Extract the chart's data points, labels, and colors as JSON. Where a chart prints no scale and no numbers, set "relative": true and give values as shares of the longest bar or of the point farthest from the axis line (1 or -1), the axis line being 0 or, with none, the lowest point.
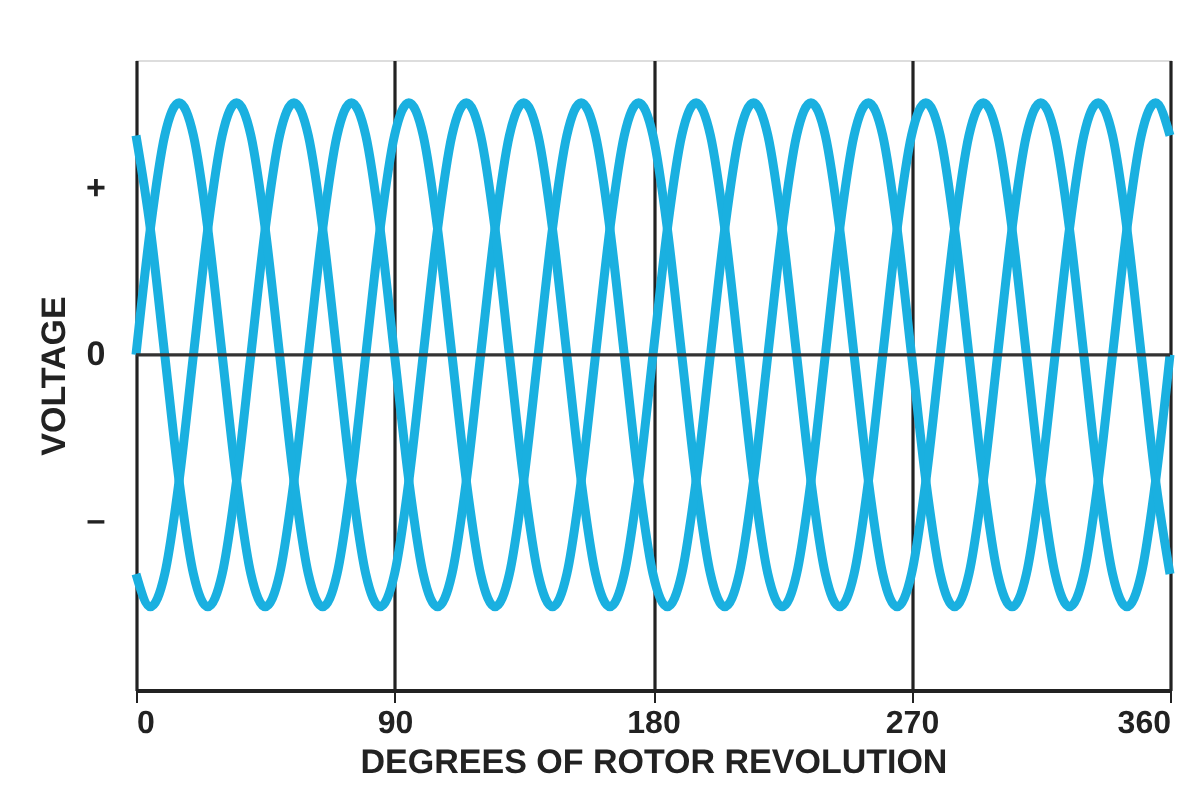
{
  "chart_data": {
    "type": "line",
    "relative": true,
    "xlabel": "DEGREES OF ROTOR REVOLUTION",
    "ylabel": "VOLTAGE",
    "x": [
      0,
      5,
      10,
      15,
      20,
      25,
      30,
      35,
      40,
      45,
      50,
      55,
      60,
      65,
      70,
      75,
      80,
      85,
      90,
      95,
      100,
      105,
      110,
      115,
      120,
      125,
      130,
      135,
      140,
      145,
      150,
      155,
      160,
      165,
      170,
      175,
      180,
      185,
      190,
      195,
      200,
      205,
      210,
      215,
      220,
      225,
      230,
      235,
      240,
      245,
      250,
      255,
      260,
      265,
      270,
      275,
      280,
      285,
      290,
      295,
      300,
      305,
      310,
      315,
      320,
      325,
      330,
      335,
      340,
      345,
      350,
      355,
      360
    ],
    "xlim": [
      0,
      360
    ],
    "xticks": [
      0,
      90,
      180,
      270,
      360
    ],
    "annotations": [
      "+",
      "0",
      "–"
    ],
    "grid": "x",
    "legend": false,
    "marker": "none",
    "line_style": "solid",
    "series": [
      {
        "color": "#1ab0e0",
        "values": [
          0,
          0.5,
          0.87,
          1,
          0.87,
          0.5,
          0,
          -0.5,
          -0.87,
          -1,
          -0.87,
          -0.5,
          0,
          0.5,
          0.87,
          1,
          0.87,
          0.5,
          0,
          -0.5,
          -0.87,
          -1,
          -0.87,
          -0.5,
          0,
          0.5,
          0.87,
          1,
          0.87,
          0.5,
          0,
          -0.5,
          -0.87,
          -1,
          -0.87,
          -0.5,
          0,
          0.5,
          0.87,
          1,
          0.87,
          0.5,
          0,
          -0.5,
          -0.87,
          -1,
          -0.87,
          -0.5,
          0,
          0.5,
          0.87,
          1,
          0.87,
          0.5,
          0,
          -0.5,
          -0.87,
          -1,
          -0.87,
          -0.5,
          0,
          0.5,
          0.87,
          1,
          0.87,
          0.5,
          0,
          -0.5,
          -0.87,
          -1,
          -0.87,
          -0.5,
          0
        ]
      },
      {
        "color": "#1ab0e0",
        "values": [
          0.87,
          0.5,
          0,
          -0.5,
          -0.87,
          -1,
          -0.87,
          -0.5,
          0,
          0.5,
          0.87,
          1,
          0.87,
          0.5,
          0,
          -0.5,
          -0.87,
          -1,
          -0.87,
          -0.5,
          0,
          0.5,
          0.87,
          1,
          0.87,
          0.5,
          0,
          -0.5,
          -0.87,
          -1,
          -0.87,
          -0.5,
          0,
          0.5,
          0.87,
          1,
          0.87,
          0.5,
          0,
          -0.5,
          -0.87,
          -1,
          -0.87,
          -0.5,
          0,
          0.5,
          0.87,
          1,
          0.87,
          0.5,
          0,
          -0.5,
          -0.87,
          -1,
          -0.87,
          -0.5,
          0,
          0.5,
          0.87,
          1,
          0.87,
          0.5,
          0,
          -0.5,
          -0.87,
          -1,
          -0.87,
          -0.5,
          0,
          0.5,
          0.87,
          1,
          0.87
        ]
      },
      {
        "color": "#1ab0e0",
        "values": [
          -0.87,
          -1,
          -0.87,
          -0.5,
          0,
          0.5,
          0.87,
          1,
          0.87,
          0.5,
          0,
          -0.5,
          -0.87,
          -1,
          -0.87,
          -0.5,
          0,
          0.5,
          0.87,
          1,
          0.87,
          0.5,
          0,
          -0.5,
          -0.87,
          -1,
          -0.87,
          -0.5,
          0,
          0.5,
          0.87,
          1,
          0.87,
          0.5,
          0,
          -0.5,
          -0.87,
          -1,
          -0.87,
          -0.5,
          0,
          0.5,
          0.87,
          1,
          0.87,
          0.5,
          0,
          -0.5,
          -0.87,
          -1,
          -0.87,
          -0.5,
          0,
          0.5,
          0.87,
          1,
          0.87,
          0.5,
          0,
          -0.5,
          -0.87,
          -1,
          -0.87,
          -0.5,
          0,
          0.5,
          0.87,
          1,
          0.87,
          0.5,
          0,
          -0.5,
          -0.87
        ]
      }
    ]
  }
}
